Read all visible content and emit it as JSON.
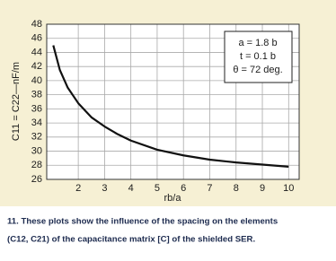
{
  "chart_data": {
    "type": "line",
    "ylabel": "C11 = C22—nF/m",
    "xlabel": "rb/a",
    "annotations": [
      "a = 1.8 b",
      "t = 0.1 b",
      "θ = 72 deg."
    ],
    "caption": [
      "11. These plots show the influence of the spacing on the elements",
      "(C12, C21) of the capacitance matrix [C] of the shielded SER."
    ],
    "x": [
      1.05,
      1.3,
      1.6,
      2,
      2.5,
      3,
      3.5,
      4,
      5,
      6,
      7,
      8,
      9,
      10
    ],
    "series": [
      {
        "color": "#111111",
        "values": [
          45,
          41.5,
          39,
          36.8,
          34.8,
          33.5,
          32.4,
          31.5,
          30.2,
          29.4,
          28.8,
          28.4,
          28.1,
          27.8
        ]
      }
    ],
    "xlim": [
      0.8,
      10.4
    ],
    "ylim": [
      26,
      48
    ],
    "xticks": [
      2,
      3,
      4,
      5,
      6,
      7,
      8,
      9,
      10
    ],
    "yticks": [
      26,
      28,
      30,
      32,
      34,
      36,
      38,
      40,
      42,
      44,
      46,
      48
    ],
    "grid": true
  }
}
